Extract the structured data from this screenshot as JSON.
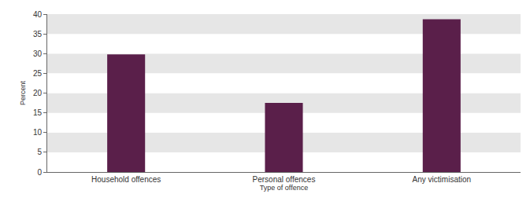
{
  "chart_data": {
    "type": "bar",
    "categories": [
      "Household offences",
      "Personal offences",
      "Any victimisation"
    ],
    "values": [
      29.8,
      17.5,
      38.7
    ],
    "color": "#5a1f4a",
    "xlabel": "Type of offence",
    "ylabel": "Percent",
    "ylim": [
      0,
      40
    ],
    "yticks": [
      0,
      5,
      10,
      15,
      20,
      25,
      30,
      35,
      40
    ],
    "grid": true
  }
}
